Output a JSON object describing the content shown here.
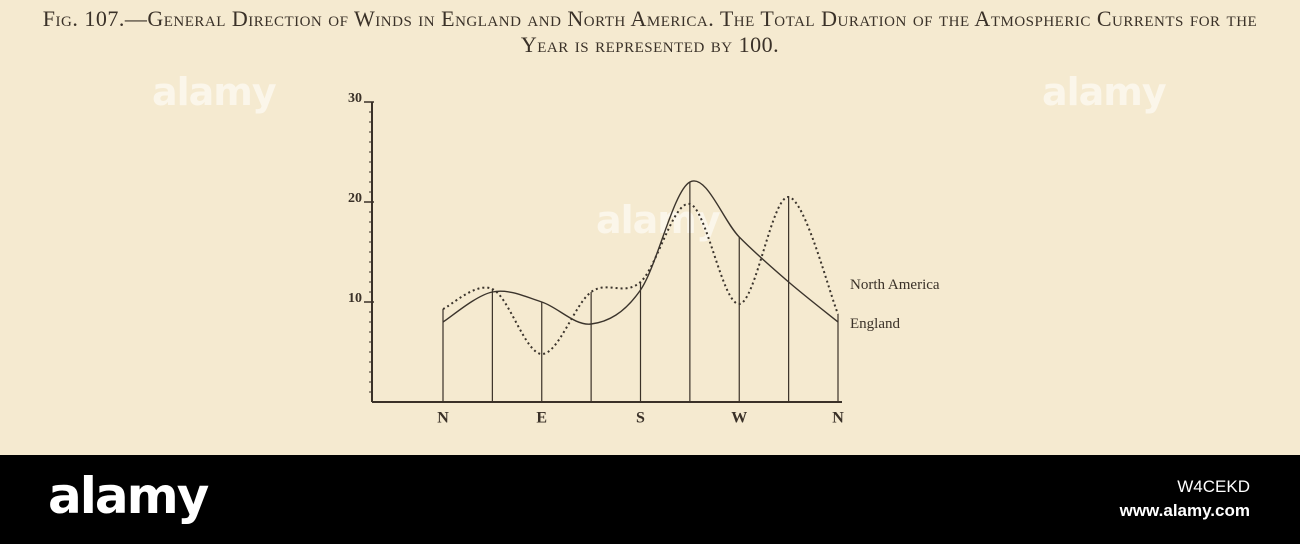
{
  "chart_data": {
    "type": "line",
    "title": "Fig. 107.—General Direction of Winds in England and North America. The Total Duration of the Atmospheric Currents for the Year is represented by 100.",
    "categories": [
      "N",
      null,
      "E",
      null,
      "S",
      null,
      "W",
      null,
      "N"
    ],
    "series": [
      {
        "name": "North America",
        "color": "#3b342c",
        "style": "dotted",
        "values": [
          9.3,
          11.3,
          4.8,
          11,
          12,
          19.8,
          9.8,
          20.5,
          8.8
        ]
      },
      {
        "name": "England",
        "color": "#3b342c",
        "style": "solid",
        "values": [
          8,
          11,
          10,
          7.8,
          11.2,
          22,
          16.5,
          12,
          8
        ]
      }
    ],
    "ylim": [
      0,
      30
    ],
    "yticks": [
      10,
      20,
      30
    ]
  },
  "watermark": "alamy",
  "footer": {
    "logo": "alamy",
    "image_id": "W4CEKD",
    "url": "www.alamy.com"
  }
}
